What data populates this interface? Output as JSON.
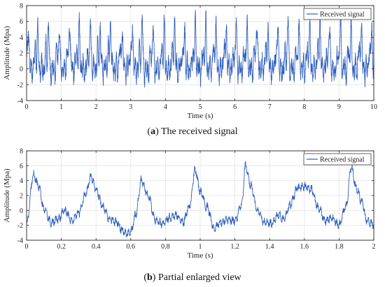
{
  "chart_data": [
    {
      "panel_id": "a",
      "type": "line",
      "caption_letter": "a",
      "caption_text": "The received signal",
      "xlabel": "Time (s)",
      "ylabel": "Amplitude (Mpa)",
      "xlim": [
        0,
        10
      ],
      "ylim": [
        -4,
        8
      ],
      "xticks": [
        0,
        1,
        2,
        3,
        4,
        5,
        6,
        7,
        8,
        9,
        10
      ],
      "yticks": [
        -4,
        -2,
        0,
        2,
        4,
        6,
        8
      ],
      "grid": true,
      "legend_position": "top-right",
      "series": [
        {
          "name": "Received signal",
          "color": "#2f5fbf",
          "x": [
            0,
            0.3,
            0.6,
            0.9,
            1.2,
            1.5,
            1.8,
            2.1,
            2.4,
            2.7,
            3.0,
            3.3,
            3.6,
            3.9,
            4.2,
            4.5,
            4.8,
            5.1,
            5.4,
            5.7,
            6.0,
            6.3,
            6.6,
            6.9,
            7.2,
            7.5,
            7.8,
            8.1,
            8.4,
            8.7,
            9.0,
            9.3,
            9.6,
            9.9
          ],
          "y": [
            5.4,
            4.6,
            5.6,
            5.0,
            6.2,
            5.3,
            5.8,
            5.1,
            6.0,
            5.2,
            5.6,
            6.0,
            5.2,
            5.9,
            6.4,
            5.4,
            5.8,
            5.6,
            6.0,
            5.7,
            5.9,
            5.5,
            6.1,
            5.2,
            5.8,
            6.4,
            5.4,
            5.6,
            6.3,
            5.5,
            5.9,
            5.7,
            6.1,
            5.5
          ],
          "peak_times": [
            0.05,
            0.32,
            0.63,
            0.94,
            1.24,
            1.52,
            1.84,
            2.12,
            2.42,
            2.75,
            3.05,
            3.33,
            3.64,
            3.96,
            4.26,
            4.55,
            4.86,
            5.16,
            5.45,
            5.75,
            6.04,
            6.35,
            6.63,
            6.95,
            7.24,
            7.53,
            7.84,
            8.15,
            8.45,
            8.73,
            9.04,
            9.34,
            9.64,
            9.94
          ],
          "peak_values": [
            5.4,
            4.6,
            5.6,
            5.0,
            6.2,
            5.3,
            5.8,
            5.1,
            6.0,
            5.2,
            5.6,
            6.0,
            5.2,
            5.9,
            6.4,
            5.4,
            5.8,
            5.6,
            6.0,
            5.7,
            5.9,
            5.5,
            6.1,
            5.2,
            5.8,
            6.4,
            5.4,
            5.6,
            6.3,
            5.5,
            5.9,
            5.7,
            6.1,
            5.5
          ]
        }
      ]
    },
    {
      "panel_id": "b",
      "type": "line",
      "caption_letter": "b",
      "caption_text": "Partial enlarged view",
      "xlabel": "Time (s)",
      "ylabel": "Amplitude (Mpa)",
      "xlim": [
        0,
        2
      ],
      "ylim": [
        -4,
        8
      ],
      "xticks": [
        0,
        0.2,
        0.4,
        0.6,
        0.8,
        1,
        1.2,
        1.4,
        1.6,
        1.8,
        2
      ],
      "yticks": [
        -4,
        -2,
        0,
        2,
        4,
        6,
        8
      ],
      "grid": true,
      "legend_position": "top-right",
      "series": [
        {
          "name": "Received signal",
          "color": "#2f5fbf",
          "x": [
            0,
            0.04,
            0.07,
            0.1,
            0.14,
            0.18,
            0.22,
            0.26,
            0.3,
            0.34,
            0.37,
            0.4,
            0.44,
            0.48,
            0.52,
            0.55,
            0.58,
            0.6,
            0.63,
            0.66,
            0.7,
            0.74,
            0.78,
            0.82,
            0.86,
            0.9,
            0.94,
            0.97,
            1.0,
            1.04,
            1.08,
            1.12,
            1.16,
            1.2,
            1.24,
            1.26,
            1.29,
            1.33,
            1.37,
            1.41,
            1.45,
            1.48,
            1.52,
            1.56,
            1.6,
            1.64,
            1.68,
            1.72,
            1.76,
            1.8,
            1.84,
            1.87,
            1.9,
            1.93,
            1.96,
            2.0
          ],
          "y": [
            -1.8,
            4.8,
            3.2,
            0.2,
            -1.6,
            -1.2,
            0.0,
            -1.4,
            -0.4,
            2.2,
            4.6,
            2.8,
            0.4,
            -1.2,
            -1.6,
            -2.6,
            -3.2,
            -2.8,
            -0.4,
            4.0,
            2.0,
            -1.2,
            -1.8,
            -1.0,
            -0.6,
            -1.6,
            0.6,
            5.4,
            2.6,
            0.4,
            -2.4,
            -1.6,
            -1.2,
            -1.4,
            0.8,
            6.0,
            3.4,
            0.0,
            -1.6,
            -1.8,
            -0.6,
            -1.2,
            0.8,
            3.0,
            3.2,
            2.8,
            0.4,
            -1.4,
            -1.0,
            -2.0,
            0.6,
            5.8,
            3.0,
            1.2,
            -1.4,
            -1.8
          ]
        }
      ]
    }
  ]
}
